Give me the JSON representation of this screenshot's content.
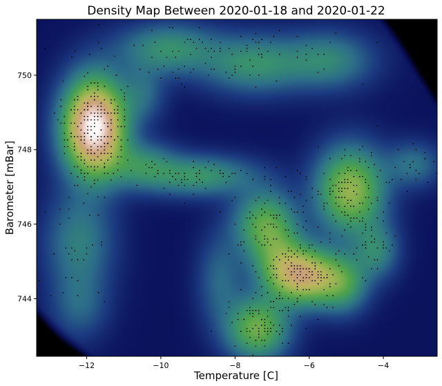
{
  "chart_data": {
    "type": "heatmap",
    "title": "Density Map Between 2020-01-18 and 2020-01-22",
    "xlabel": "Temperature [C]",
    "ylabel": "Barometer [mBar]",
    "xlim": [
      -13.35,
      -2.55
    ],
    "ylim": [
      742.45,
      751.5
    ],
    "xticks": [
      -12,
      -10,
      -8,
      -6,
      -4
    ],
    "xtick_labels": [
      "−12",
      "−10",
      "−8",
      "−6",
      "−4"
    ],
    "yticks": [
      744,
      746,
      748,
      750
    ],
    "ytick_labels": [
      "744",
      "746",
      "748",
      "750"
    ],
    "colormap": "gist_earth",
    "grid": false,
    "density_peaks": [
      {
        "x": -11.8,
        "y": 748.6,
        "relative_density": 1.0
      },
      {
        "x": -6.1,
        "y": 744.6,
        "relative_density": 0.8
      },
      {
        "x": -4.9,
        "y": 746.9,
        "relative_density": 0.65
      },
      {
        "x": -7.4,
        "y": 743.2,
        "relative_density": 0.55
      },
      {
        "x": -7.3,
        "y": 746.0,
        "relative_density": 0.5
      },
      {
        "x": -9.0,
        "y": 747.3,
        "relative_density": 0.35
      },
      {
        "x": -9.8,
        "y": 750.7,
        "relative_density": 0.3
      },
      {
        "x": -7.5,
        "y": 750.3,
        "relative_density": 0.3
      }
    ],
    "point_color": "#000000"
  }
}
